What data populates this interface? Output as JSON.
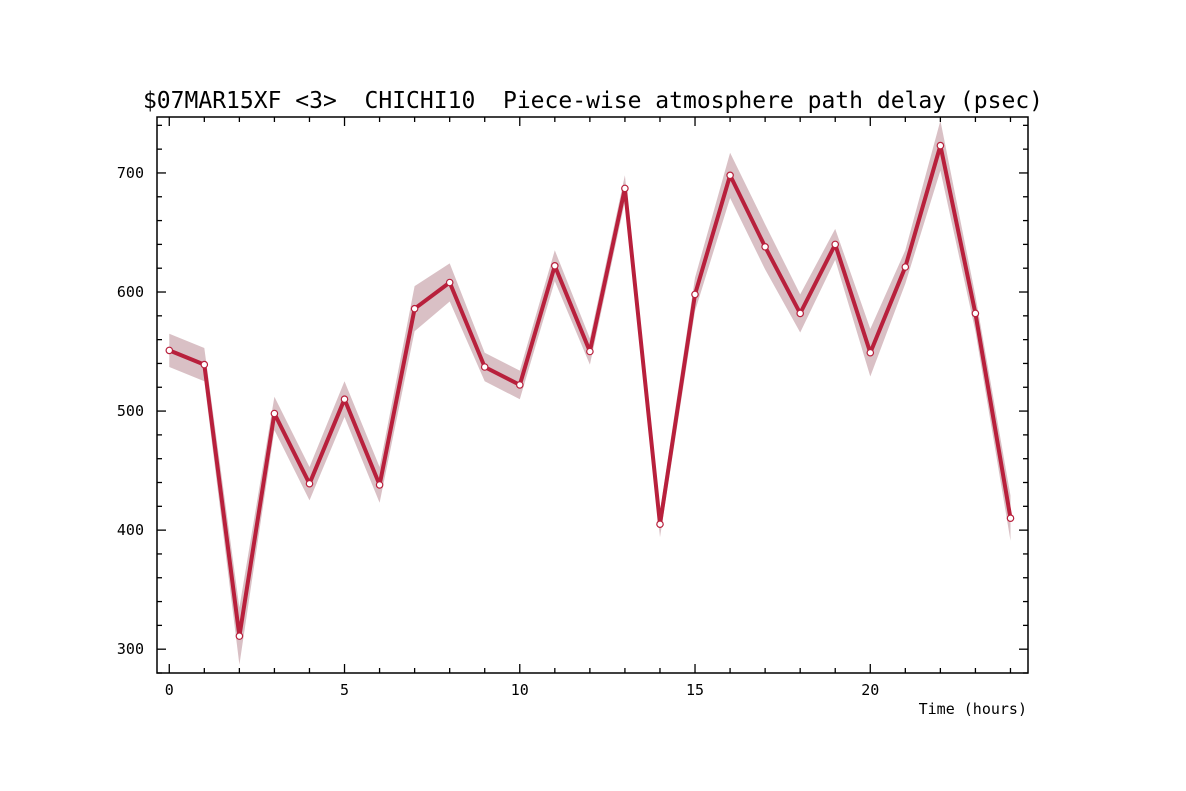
{
  "chart_data": {
    "type": "line",
    "title": "$07MAR15XF <3>  CHICHI10  Piece-wise atmosphere path delay (psec)",
    "xlabel": "Time (hours)",
    "ylabel": "",
    "xlim": [
      -0.35,
      24.5
    ],
    "ylim": [
      280,
      747
    ],
    "x_ticks": [
      0,
      5,
      10,
      15,
      20
    ],
    "y_ticks": [
      300,
      400,
      500,
      600,
      700
    ],
    "grid": false,
    "legend": "none",
    "series": [
      {
        "x": [
          0,
          1,
          2,
          3,
          4,
          5,
          6,
          7,
          8,
          9,
          10,
          11,
          12,
          13,
          14,
          15,
          16,
          17,
          18,
          19,
          20,
          21,
          22,
          23,
          24
        ],
        "y": [
          551,
          539,
          311,
          498,
          439,
          510,
          438,
          586,
          608,
          537,
          522,
          622,
          550,
          687,
          405,
          598,
          698,
          638,
          582,
          640,
          549,
          621,
          723,
          582,
          410
        ],
        "err": [
          14,
          14,
          24,
          14,
          14,
          15,
          15,
          19,
          16,
          12,
          12,
          13,
          11,
          11,
          11,
          14,
          19,
          19,
          16,
          13,
          20,
          14,
          21,
          15,
          19
        ]
      }
    ],
    "colors": {
      "line": "#b8203c",
      "band": "#d9c0c5",
      "marker_fill": "#ffffff",
      "axis": "#000000"
    }
  }
}
